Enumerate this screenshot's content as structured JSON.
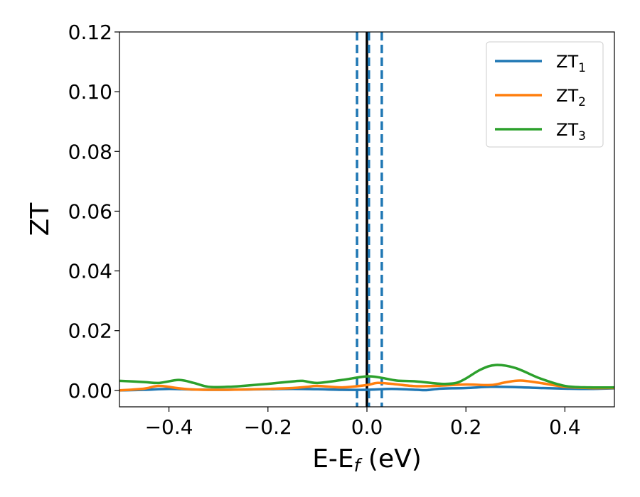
{
  "chart_data": {
    "type": "line",
    "xlabel": "E-E",
    "xlabel_sub": "f",
    "xlabel_unit": " (eV)",
    "ylabel": "ZT",
    "xlim": [
      -0.5,
      0.5
    ],
    "ylim": [
      -0.0055,
      0.12
    ],
    "xticks": [
      -0.4,
      -0.2,
      0.0,
      0.2,
      0.4
    ],
    "xtick_labels": [
      "−0.4",
      "−0.2",
      "0.0",
      "0.2",
      "0.4"
    ],
    "yticks": [
      0.0,
      0.02,
      0.04,
      0.06,
      0.08,
      0.1,
      0.12
    ],
    "ytick_labels": [
      "0.00",
      "0.02",
      "0.04",
      "0.06",
      "0.08",
      "0.10",
      "0.12"
    ],
    "grid": false,
    "legend_position": "top-right",
    "vlines": [
      {
        "x": -0.02,
        "style": "dashed",
        "color": "#1f77b4"
      },
      {
        "x": 0.0,
        "style": "solid",
        "color": "#000000"
      },
      {
        "x": 0.004,
        "style": "dashed",
        "color": "#1f77b4"
      },
      {
        "x": 0.03,
        "style": "dashed",
        "color": "#1f77b4"
      }
    ],
    "series": [
      {
        "name": "ZT",
        "name_sub": "1",
        "color": "#1f77b4",
        "x": [
          -0.5,
          -0.45,
          -0.4,
          -0.35,
          -0.3,
          -0.25,
          -0.2,
          -0.15,
          -0.1,
          -0.05,
          0.0,
          0.05,
          0.1,
          0.12,
          0.15,
          0.2,
          0.25,
          0.3,
          0.35,
          0.4,
          0.45,
          0.5
        ],
        "values": [
          0.0,
          0.0002,
          0.0005,
          0.0003,
          0.0002,
          0.0003,
          0.0004,
          0.0005,
          0.0004,
          0.0002,
          0.0002,
          0.0005,
          0.0002,
          0.0001,
          0.0006,
          0.0008,
          0.0012,
          0.0011,
          0.0008,
          0.0006,
          0.0005,
          0.0007
        ]
      },
      {
        "name": "ZT",
        "name_sub": "2",
        "color": "#ff7f0e",
        "x": [
          -0.5,
          -0.45,
          -0.42,
          -0.38,
          -0.35,
          -0.3,
          -0.25,
          -0.2,
          -0.15,
          -0.12,
          -0.1,
          -0.05,
          0.0,
          0.02,
          0.05,
          0.1,
          0.15,
          0.2,
          0.25,
          0.28,
          0.31,
          0.35,
          0.4,
          0.45,
          0.5
        ],
        "values": [
          0.0,
          0.0006,
          0.0015,
          0.0007,
          0.0003,
          0.0002,
          0.0003,
          0.0005,
          0.0008,
          0.0012,
          0.0015,
          0.001,
          0.0018,
          0.0025,
          0.0022,
          0.0014,
          0.0016,
          0.002,
          0.0018,
          0.0027,
          0.0033,
          0.0025,
          0.0012,
          0.0008,
          0.0008
        ]
      },
      {
        "name": "ZT",
        "name_sub": "3",
        "color": "#2ca02c",
        "x": [
          -0.5,
          -0.45,
          -0.42,
          -0.38,
          -0.35,
          -0.32,
          -0.28,
          -0.25,
          -0.2,
          -0.15,
          -0.13,
          -0.1,
          -0.05,
          0.0,
          0.03,
          0.06,
          0.1,
          0.15,
          0.18,
          0.2,
          0.23,
          0.26,
          0.3,
          0.35,
          0.4,
          0.45,
          0.5
        ],
        "values": [
          0.0032,
          0.0028,
          0.0025,
          0.0035,
          0.0025,
          0.0012,
          0.0012,
          0.0015,
          0.0022,
          0.003,
          0.0032,
          0.0025,
          0.0035,
          0.0047,
          0.0042,
          0.0033,
          0.003,
          0.0022,
          0.0025,
          0.004,
          0.007,
          0.0085,
          0.0075,
          0.004,
          0.0015,
          0.001,
          0.001
        ]
      }
    ]
  }
}
